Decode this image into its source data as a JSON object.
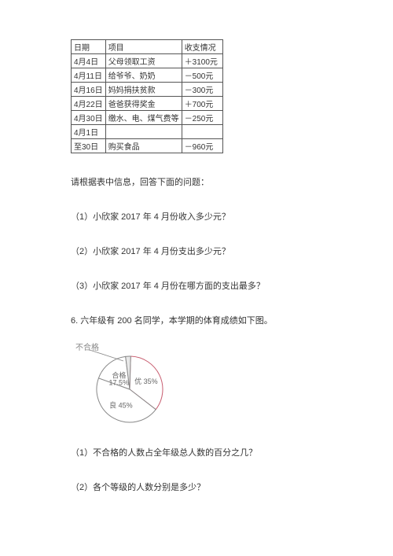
{
  "table": {
    "headers": [
      "日期",
      "项目",
      "收支情况"
    ],
    "rows": [
      [
        "4月4日",
        "父母领取工资",
        "＋3100元"
      ],
      [
        "4月11日",
        "给爷爷、奶奶",
        "－500元"
      ],
      [
        "4月16日",
        "妈妈捐扶贫款",
        "－300元"
      ],
      [
        "4月22日",
        "爸爸获得奖金",
        "＋700元"
      ],
      [
        "4月30日",
        "缴水、电、煤气费等",
        "－250元"
      ],
      [
        "4月1日",
        "",
        ""
      ],
      [
        "至30日",
        "购买食品",
        "－960元"
      ]
    ]
  },
  "intro": "请根据表中信息，回答下面的问题：",
  "q1": "（1）小欣家 2017 年 4 月份收入多少元？",
  "q2": "（2）小欣家 2017 年 4 月份支出多少元？",
  "q3": "（3）小欣家 2017 年 4 月份在哪方面的支出最多？",
  "section6": "6. 六年级有 200 名同学，本学期的体育成绩如下图。",
  "pie": {
    "type": "pie",
    "outside_label": "不合格",
    "slices": [
      {
        "label": "优 35%",
        "value": 35,
        "fill": "#ffffff",
        "stroke": "#c75b6e"
      },
      {
        "label": "良 45%",
        "value": 45,
        "fill": "#ffffff",
        "stroke": "#888888"
      },
      {
        "label": "合格\n17.5%",
        "value": 17.5,
        "fill": "#ffffff",
        "stroke": "#888888"
      },
      {
        "label": "",
        "value": 2.5,
        "fill": "#e8e8e8",
        "stroke": "#888888"
      }
    ],
    "title_fontsize": 10,
    "label_fontsize": 9,
    "radius": 42,
    "line_color": "#888888"
  },
  "q6_1": "（1）不合格的人数占全年级总人数的百分之几？",
  "q6_2": "（2）各个等级的人数分别是多少？"
}
